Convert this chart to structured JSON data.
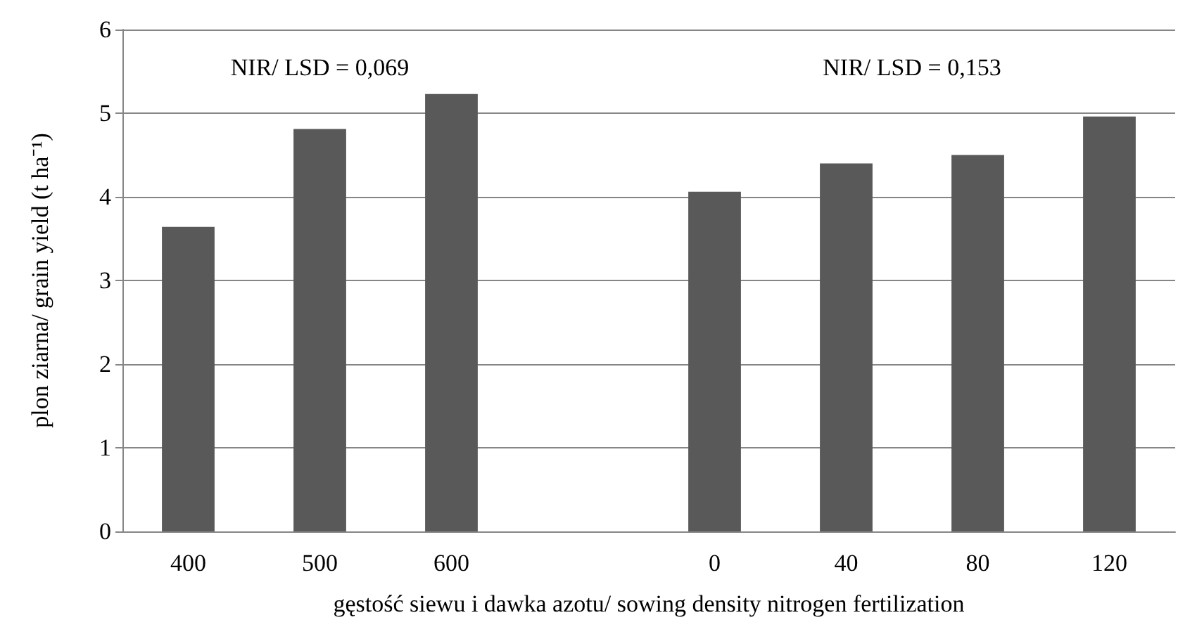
{
  "chart_data": {
    "type": "bar",
    "xlabel": "gęstość siewu i dawka azotu/ sowing density nitrogen fertilization",
    "ylabel": "plon ziarna/ grain yield (t ha⁻¹)",
    "categories": [
      "400",
      "500",
      "600",
      null,
      "0",
      "40",
      "80",
      "120"
    ],
    "values": [
      3.64,
      4.81,
      5.23,
      null,
      4.06,
      4.4,
      4.5,
      4.96
    ],
    "color": "#595959",
    "ylim": [
      0,
      6
    ],
    "yticks": [
      0,
      1,
      2,
      3,
      4,
      5,
      6
    ],
    "grid": "y",
    "annotations": [
      "NIR/ LSD = 0,069",
      "NIR/ LSD = 0,153"
    ]
  }
}
